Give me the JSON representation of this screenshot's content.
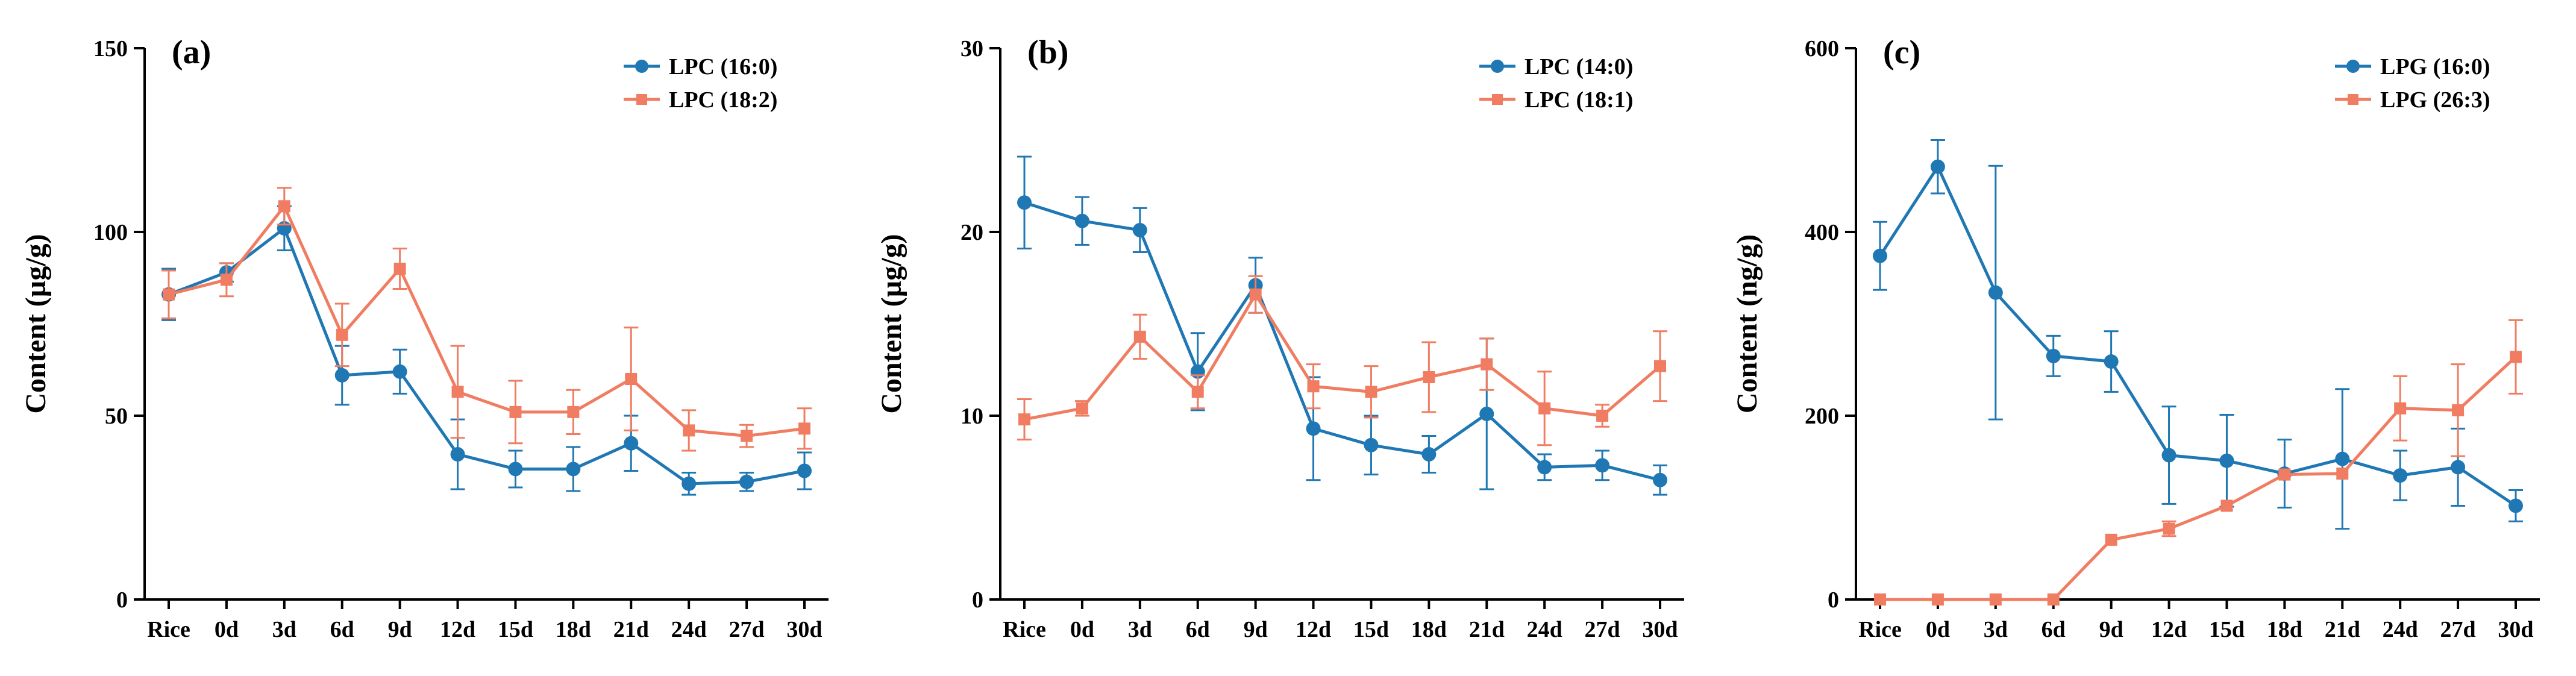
{
  "colors": {
    "series1": "#1f77b4",
    "series2": "#f07d62",
    "axis": "#000000"
  },
  "chart_data": [
    {
      "type": "line",
      "panel_label": "(a)",
      "ylabel": "Content (µg/g)",
      "xlabel": "",
      "categories": [
        "Rice",
        "0d",
        "3d",
        "6d",
        "9d",
        "12d",
        "15d",
        "18d",
        "21d",
        "24d",
        "27d",
        "30d"
      ],
      "ylim": [
        0,
        150
      ],
      "yticks": [
        0,
        50,
        100,
        150
      ],
      "legend_position": "top-right",
      "series": [
        {
          "name": "LPC (16:0)",
          "marker": "circle",
          "values": [
            83,
            89,
            101,
            61,
            62,
            39.5,
            35.5,
            35.5,
            42.5,
            31.5,
            32,
            35
          ],
          "errors": [
            7,
            2.5,
            6,
            8,
            6,
            9.5,
            5,
            6,
            7.5,
            3,
            2.5,
            5
          ]
        },
        {
          "name": "LPC (18:2)",
          "marker": "square",
          "values": [
            83,
            87,
            107,
            72,
            90,
            56.5,
            51,
            51,
            60,
            46,
            44.5,
            46.5
          ],
          "errors": [
            6.5,
            4.5,
            5,
            8.5,
            5.5,
            12.5,
            8.5,
            6,
            14,
            5.5,
            3,
            5.5
          ]
        }
      ]
    },
    {
      "type": "line",
      "panel_label": "(b)",
      "ylabel": "Content (µg/g)",
      "xlabel": "",
      "categories": [
        "Rice",
        "0d",
        "3d",
        "6d",
        "9d",
        "12d",
        "15d",
        "18d",
        "21d",
        "24d",
        "27d",
        "30d"
      ],
      "ylim": [
        0,
        30
      ],
      "yticks": [
        0,
        10,
        20,
        30
      ],
      "legend_position": "top-right",
      "series": [
        {
          "name": "LPC (14:0)",
          "marker": "circle",
          "values": [
            21.6,
            20.6,
            20.1,
            12.4,
            17.1,
            9.3,
            8.4,
            7.9,
            10.1,
            7.2,
            7.3,
            6.5
          ],
          "errors": [
            2.5,
            1.3,
            1.2,
            2.1,
            1.5,
            2.8,
            1.6,
            1.0,
            4.1,
            0.7,
            0.8,
            0.8
          ]
        },
        {
          "name": "LPC (18:1)",
          "marker": "square",
          "values": [
            9.8,
            10.4,
            14.3,
            11.3,
            16.6,
            11.6,
            11.3,
            12.1,
            12.8,
            10.4,
            10.0,
            12.7
          ],
          "errors": [
            1.1,
            0.4,
            1.2,
            0.9,
            1.0,
            1.2,
            1.4,
            1.9,
            1.4,
            2.0,
            0.6,
            1.9
          ]
        }
      ]
    },
    {
      "type": "line",
      "panel_label": "(c)",
      "ylabel": "Content (ng/g)",
      "xlabel": "",
      "categories": [
        "Rice",
        "0d",
        "3d",
        "6d",
        "9d",
        "12d",
        "15d",
        "18d",
        "21d",
        "24d",
        "27d",
        "30d"
      ],
      "ylim": [
        0,
        600
      ],
      "yticks": [
        0,
        200,
        400,
        600
      ],
      "legend_position": "top-right",
      "series": [
        {
          "name": "LPG (16:0)",
          "marker": "circle",
          "values": [
            374,
            471,
            334,
            265,
            259,
            157,
            151,
            137,
            153,
            135,
            144,
            102
          ],
          "errors": [
            37,
            29,
            138,
            22,
            33,
            53,
            50,
            37,
            76,
            27,
            42,
            17
          ]
        },
        {
          "name": "LPG (26:3)",
          "marker": "square",
          "values": [
            0,
            0,
            0,
            0,
            65,
            77,
            102,
            136,
            137,
            208,
            206,
            264
          ],
          "errors": [
            0,
            0,
            0,
            0,
            0,
            8,
            0,
            0,
            0,
            35,
            50,
            40
          ]
        }
      ]
    }
  ]
}
